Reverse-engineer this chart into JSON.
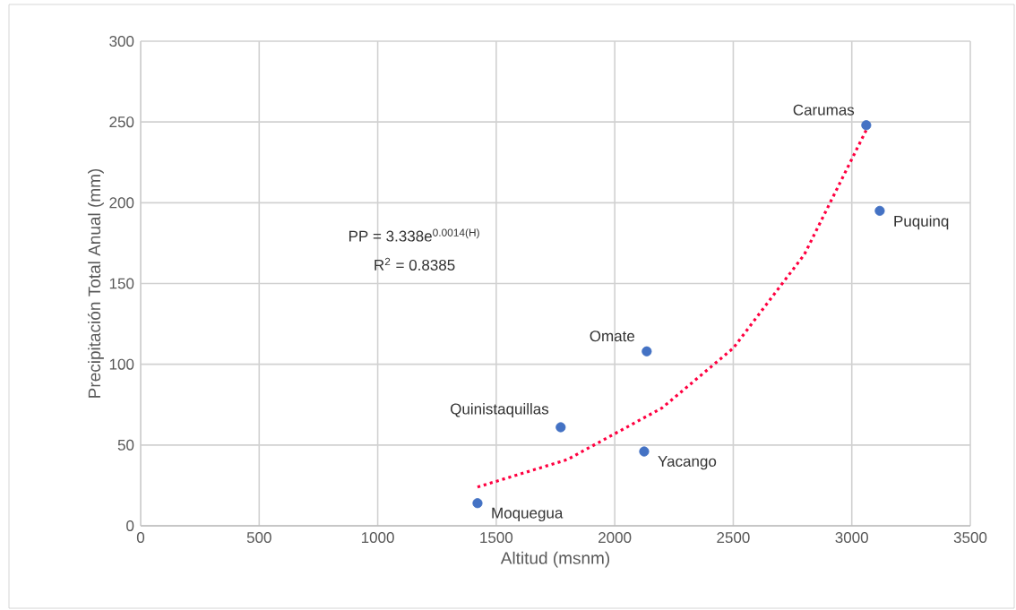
{
  "chart_data": {
    "type": "scatter",
    "xlabel": "Altitud  (msnm)",
    "ylabel": "Precipitación Total Anual (mm)",
    "xlim": [
      0,
      3500
    ],
    "xticks": [
      0,
      500,
      1000,
      1500,
      2000,
      2500,
      3000,
      3500
    ],
    "ylim": [
      0,
      300
    ],
    "yticks": [
      0,
      50,
      100,
      150,
      200,
      250,
      300
    ],
    "grid": true,
    "marker": "circle",
    "series": [
      {
        "color": "#4472c4",
        "x": [
          1421,
          1772,
          2135,
          2124,
          3061,
          3118
        ],
        "values": [
          14,
          61,
          108,
          46,
          248,
          195
        ]
      },
      {
        "type": "line",
        "color": "#ff0040",
        "line_style": "dotted",
        "marker": "none",
        "x": [
          1421,
          1800,
          2200,
          2500,
          2800,
          3061
        ],
        "values": [
          24,
          41,
          73,
          110,
          168,
          245
        ]
      }
    ],
    "annotations": [
      "PP = 3.338e$^{0.0014(H)}$",
      "R$^{2}$ = 0.8385",
      {
        "text": "Moquegua",
        "x": 1421,
        "y": 14
      },
      {
        "text": "Quinistaquillas",
        "x": 1772,
        "y": 61
      },
      {
        "text": "Omate",
        "x": 2135,
        "y": 108
      },
      {
        "text": "Yacango",
        "x": 2124,
        "y": 46
      },
      {
        "text": "Carumas",
        "x": 3061,
        "y": 248
      },
      {
        "text": "Puquinq",
        "x": 3118,
        "y": 195
      }
    ]
  }
}
